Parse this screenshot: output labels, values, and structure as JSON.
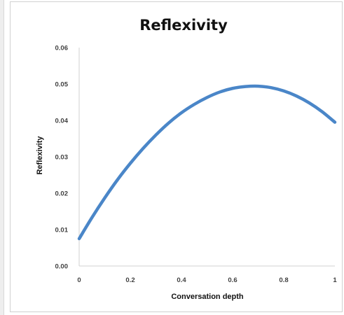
{
  "chart_data": {
    "type": "line",
    "title": "Reflexivity",
    "xlabel": "Conversation depth",
    "ylabel": "Reflexivity",
    "xlim": [
      0,
      1
    ],
    "ylim": [
      0,
      0.06
    ],
    "x_ticks": [
      "0",
      "0.2",
      "0.4",
      "0.6",
      "0.8",
      "1"
    ],
    "y_ticks": [
      "0.00",
      "0.01",
      "0.02",
      "0.03",
      "0.04",
      "0.05",
      "0.06"
    ],
    "grid": false,
    "legend": "none",
    "series": [
      {
        "color": "#4A86C8",
        "x": [
          0,
          0.05,
          0.1,
          0.15,
          0.2,
          0.25,
          0.3,
          0.35,
          0.4,
          0.45,
          0.5,
          0.55,
          0.6,
          0.65,
          0.7,
          0.75,
          0.8,
          0.85,
          0.9,
          0.95,
          1.0
        ],
        "y": [
          0.0075,
          0.0133,
          0.0187,
          0.0237,
          0.0282,
          0.0323,
          0.036,
          0.0393,
          0.0421,
          0.0444,
          0.0463,
          0.0478,
          0.0488,
          0.0493,
          0.0494,
          0.049,
          0.0481,
          0.0467,
          0.0448,
          0.0424,
          0.0395
        ]
      }
    ]
  }
}
